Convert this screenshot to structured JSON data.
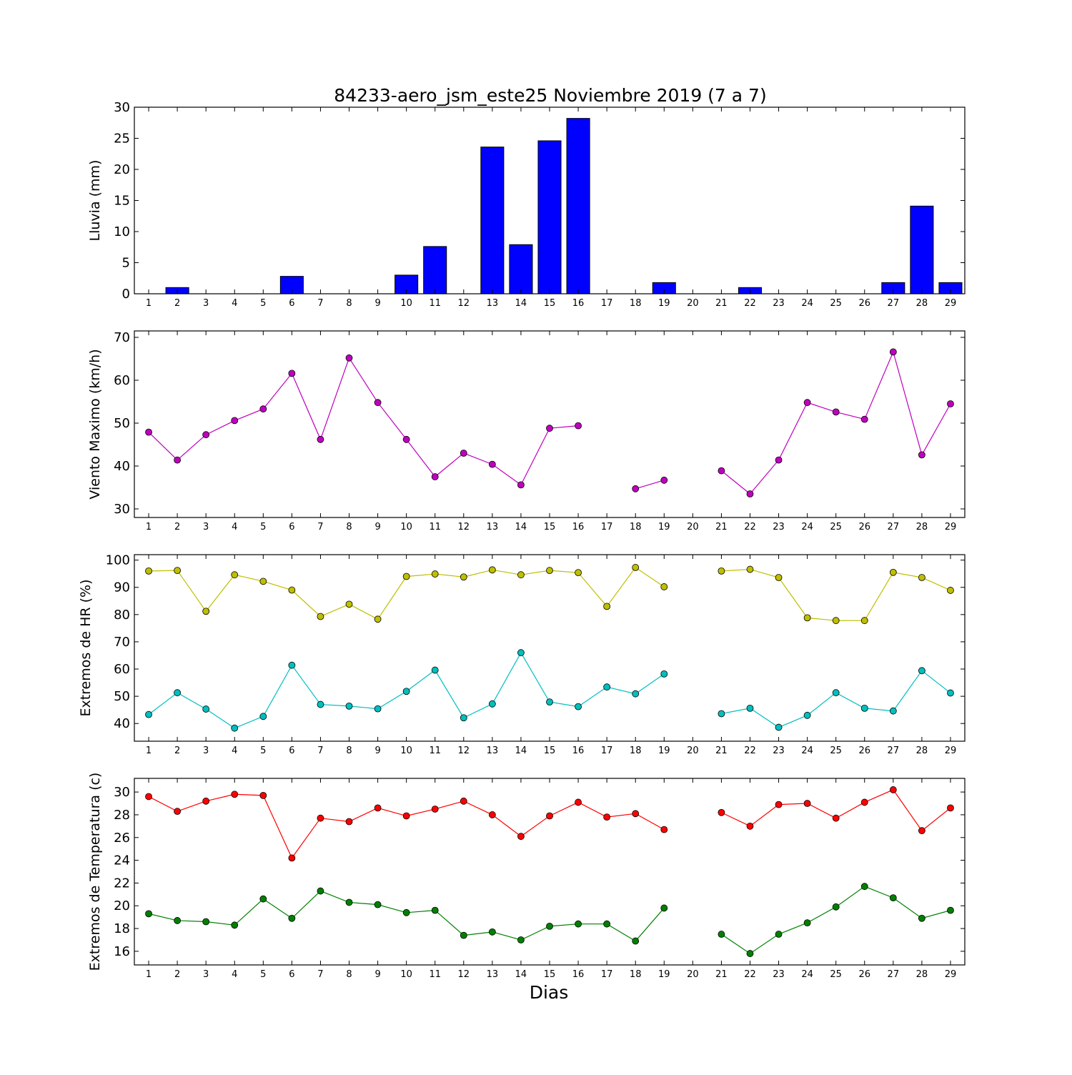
{
  "figure": {
    "title": "84233-aero_jsm_este25 Noviembre 2019  (7 a 7)",
    "xlabel": "Dias"
  },
  "chart_data": [
    {
      "type": "bar",
      "ylabel": "Lluvia (mm)",
      "ylim": [
        0,
        30
      ],
      "yticks": [
        0,
        5,
        10,
        15,
        20,
        25,
        30
      ],
      "xlim": [
        0.5,
        29.5
      ],
      "x": [
        1,
        2,
        3,
        4,
        5,
        6,
        7,
        8,
        9,
        10,
        11,
        12,
        13,
        14,
        15,
        16,
        17,
        18,
        19,
        20,
        21,
        22,
        23,
        24,
        25,
        26,
        27,
        28,
        29
      ],
      "categories": [
        "1",
        "2",
        "3",
        "4",
        "5",
        "6",
        "7",
        "8",
        "9",
        "10",
        "11",
        "12",
        "13",
        "14",
        "15",
        "16",
        "17",
        "18",
        "19",
        "20",
        "21",
        "22",
        "23",
        "24",
        "25",
        "26",
        "27",
        "28",
        "29"
      ],
      "values": [
        0,
        1.0,
        0,
        0,
        0,
        2.8,
        0,
        0,
        0,
        3.0,
        7.6,
        0,
        23.6,
        7.9,
        24.6,
        28.2,
        0,
        0,
        1.8,
        0,
        0,
        1.0,
        0,
        0,
        0,
        0,
        1.8,
        14.1,
        1.8
      ],
      "color": "#0000ff",
      "grid": false
    },
    {
      "type": "line",
      "ylabel": "Viento Maximo (km/h)",
      "ylim": [
        28,
        71.5
      ],
      "yticks": [
        30,
        40,
        50,
        60,
        70
      ],
      "xlim": [
        0.5,
        29.5
      ],
      "categories": [
        "1",
        "2",
        "3",
        "4",
        "5",
        "6",
        "7",
        "8",
        "9",
        "10",
        "11",
        "12",
        "13",
        "14",
        "15",
        "16",
        "17",
        "18",
        "19",
        "20",
        "21",
        "22",
        "23",
        "24",
        "25",
        "26",
        "27",
        "28",
        "29"
      ],
      "series": [
        {
          "color": "#bf00bf",
          "x": [
            1,
            2,
            3,
            4,
            5,
            6,
            7,
            8,
            9,
            10,
            11,
            12,
            13,
            14,
            15,
            16,
            17,
            18,
            19,
            20,
            21,
            22,
            23,
            24,
            25,
            26,
            27,
            28,
            29
          ],
          "y": [
            47.9,
            41.4,
            47.3,
            50.6,
            53.3,
            61.6,
            46.2,
            65.2,
            54.8,
            46.2,
            37.5,
            43.0,
            40.4,
            35.6,
            48.8,
            49.4,
            null,
            34.7,
            36.7,
            null,
            38.9,
            33.5,
            41.4,
            54.8,
            52.6,
            50.9,
            66.6,
            42.6,
            54.5
          ]
        }
      ],
      "grid": false
    },
    {
      "type": "line",
      "ylabel": "Extremos de HR (%)",
      "ylim": [
        33.5,
        102
      ],
      "yticks": [
        40,
        50,
        60,
        70,
        80,
        90,
        100
      ],
      "xlim": [
        0.5,
        29.5
      ],
      "categories": [
        "1",
        "2",
        "3",
        "4",
        "5",
        "6",
        "7",
        "8",
        "9",
        "10",
        "11",
        "12",
        "13",
        "14",
        "15",
        "16",
        "17",
        "18",
        "19",
        "20",
        "21",
        "22",
        "23",
        "24",
        "25",
        "26",
        "27",
        "28",
        "29"
      ],
      "series": [
        {
          "color": "#bfbf00",
          "x": [
            1,
            2,
            3,
            4,
            5,
            6,
            7,
            8,
            9,
            10,
            11,
            12,
            13,
            14,
            15,
            16,
            17,
            18,
            19,
            20,
            21,
            22,
            23,
            24,
            25,
            26,
            27,
            28,
            29
          ],
          "y": [
            96,
            96.2,
            81.2,
            94.6,
            92.2,
            89,
            79.3,
            83.8,
            78.3,
            94,
            94.9,
            93.8,
            96.4,
            94.6,
            96.2,
            95.4,
            83,
            97.3,
            90.2,
            null,
            96,
            96.6,
            93.6,
            78.8,
            77.8,
            77.8,
            95.5,
            93.6,
            88.9
          ]
        },
        {
          "color": "#00bfbf",
          "x": [
            1,
            2,
            3,
            4,
            5,
            6,
            7,
            8,
            9,
            10,
            11,
            12,
            13,
            14,
            15,
            16,
            17,
            18,
            19,
            20,
            21,
            22,
            23,
            24,
            25,
            26,
            27,
            28,
            29
          ],
          "y": [
            43.3,
            51.3,
            45.3,
            38.3,
            42.6,
            61.4,
            47.0,
            46.4,
            45.4,
            51.8,
            59.6,
            42.1,
            47.2,
            66.0,
            47.9,
            46.2,
            53.4,
            50.9,
            58.2,
            null,
            43.6,
            45.6,
            38.6,
            43.0,
            51.3,
            45.6,
            44.6,
            59.4,
            51.2
          ]
        }
      ],
      "grid": false
    },
    {
      "type": "line",
      "ylabel": "Extremos de Temperatura (c)",
      "ylim": [
        14.8,
        31.2
      ],
      "yticks": [
        16,
        18,
        20,
        22,
        24,
        26,
        28,
        30
      ],
      "xlim": [
        0.5,
        29.5
      ],
      "categories": [
        "1",
        "2",
        "3",
        "4",
        "5",
        "6",
        "7",
        "8",
        "9",
        "10",
        "11",
        "12",
        "13",
        "14",
        "15",
        "16",
        "17",
        "18",
        "19",
        "20",
        "21",
        "22",
        "23",
        "24",
        "25",
        "26",
        "27",
        "28",
        "29"
      ],
      "series": [
        {
          "color": "#ff0000",
          "x": [
            1,
            2,
            3,
            4,
            5,
            6,
            7,
            8,
            9,
            10,
            11,
            12,
            13,
            14,
            15,
            16,
            17,
            18,
            19,
            20,
            21,
            22,
            23,
            24,
            25,
            26,
            27,
            28,
            29
          ],
          "y": [
            29.6,
            28.3,
            29.2,
            29.8,
            29.7,
            24.2,
            27.7,
            27.4,
            28.6,
            27.9,
            28.5,
            29.2,
            28.0,
            26.1,
            27.9,
            29.1,
            27.8,
            28.1,
            26.7,
            null,
            28.2,
            27.0,
            28.9,
            29.0,
            27.7,
            29.1,
            30.2,
            26.6,
            28.6
          ]
        },
        {
          "color": "#008000",
          "x": [
            1,
            2,
            3,
            4,
            5,
            6,
            7,
            8,
            9,
            10,
            11,
            12,
            13,
            14,
            15,
            16,
            17,
            18,
            19,
            20,
            21,
            22,
            23,
            24,
            25,
            26,
            27,
            28,
            29
          ],
          "y": [
            19.3,
            18.7,
            18.6,
            18.3,
            20.6,
            18.9,
            21.3,
            20.3,
            20.1,
            19.4,
            19.6,
            17.4,
            17.7,
            17.0,
            18.2,
            18.4,
            18.4,
            16.9,
            19.8,
            null,
            17.5,
            15.8,
            17.5,
            18.5,
            19.9,
            21.7,
            20.7,
            18.9,
            19.6
          ]
        }
      ],
      "grid": false
    }
  ]
}
